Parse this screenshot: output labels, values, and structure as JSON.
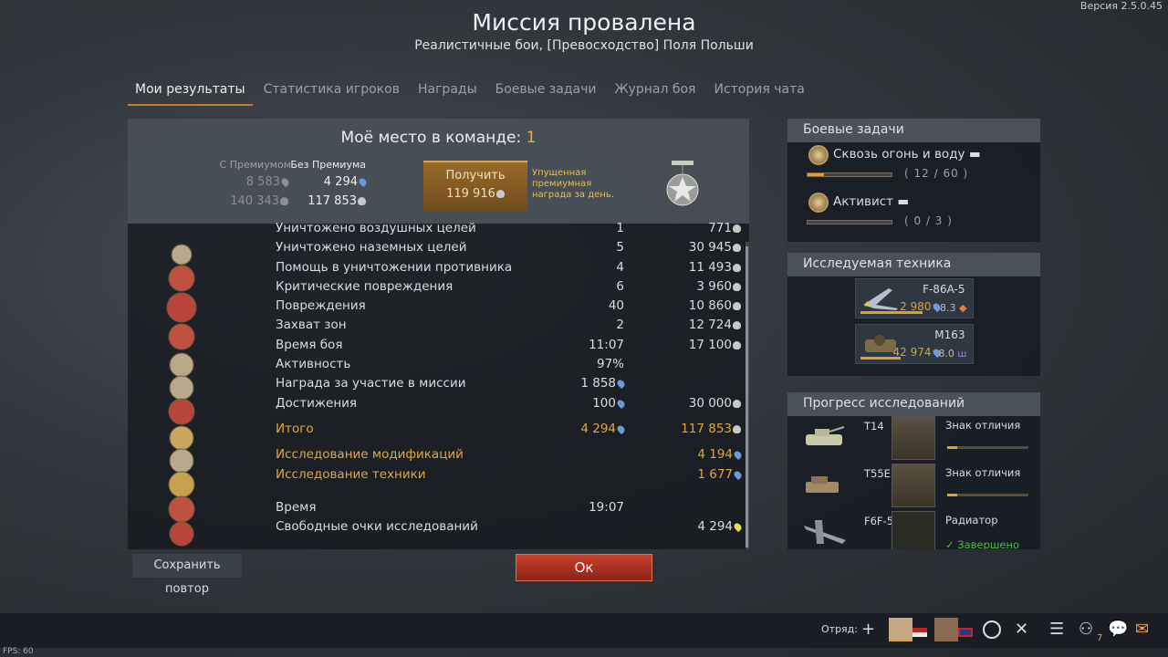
{
  "version": "Версия 2.5.0.45",
  "fps": "FPS: 60",
  "title": "Миссия провалена",
  "subtitle": "Реалистичные бои, [Превосходство] Поля Польши",
  "tabs": [
    {
      "label": "Мои результаты",
      "active": true
    },
    {
      "label": "Статистика игроков"
    },
    {
      "label": "Награды"
    },
    {
      "label": "Боевые задачи"
    },
    {
      "label": "Журнал боя"
    },
    {
      "label": "История чата"
    }
  ],
  "summary": {
    "place_label": "Моё место в команде:",
    "place": "1",
    "premium_header": "С Премиумом",
    "premium_rp": "8 583",
    "premium_sl": "140 343",
    "nopremium_header": "Без Премиума",
    "nopremium_rp": "4 294",
    "nopremium_sl": "117 853",
    "get_button": "Получить",
    "get_amount": "119 916",
    "missed_text": "Упущенная премиумная награда за день."
  },
  "rows": [
    {
      "label": "Уничтожено воздушных целей",
      "count": "1",
      "value": "771",
      "unit": "sl"
    },
    {
      "label": "Уничтожено наземных целей",
      "count": "5",
      "value": "30 945",
      "unit": "sl"
    },
    {
      "label": "Помощь в уничтожении противника",
      "count": "4",
      "value": "11 493",
      "unit": "sl"
    },
    {
      "label": "Критические повреждения",
      "count": "6",
      "value": "3 960",
      "unit": "sl"
    },
    {
      "label": "Повреждения",
      "count": "40",
      "value": "10 860",
      "unit": "sl"
    },
    {
      "label": "Захват зон",
      "count": "2",
      "value": "12 724",
      "unit": "sl"
    },
    {
      "label": "Время боя",
      "count": "11:07",
      "value": "17 100",
      "unit": "sl"
    },
    {
      "label": "Активность",
      "count": "97%",
      "value": ""
    },
    {
      "label": "Награда за участие в миссии",
      "count": "1 858",
      "count_unit": "rp",
      "value": ""
    },
    {
      "label": "Достижения",
      "count": "100",
      "count_unit": "rp",
      "value": "30 000",
      "unit": "sl"
    }
  ],
  "total": {
    "label": "Итого",
    "rp": "4 294",
    "sl": "117 853"
  },
  "research": [
    {
      "label": "Исследование модификаций",
      "value": "4 194"
    },
    {
      "label": "Исследование техники",
      "value": "1 677"
    }
  ],
  "time": {
    "label": "Время",
    "value": "19:07"
  },
  "free_rp": {
    "label": "Свободные очки исследований",
    "value": "4 294"
  },
  "tasks": {
    "title": "Боевые задачи",
    "items": [
      {
        "name": "Сквозь огонь и воду",
        "progress": "( 12 / 60 )",
        "fraction": 0.2
      },
      {
        "name": "Активист",
        "progress": "( 0 / 3 )",
        "fraction": 0
      }
    ]
  },
  "researched": {
    "title": "Исследуемая техника",
    "items": [
      {
        "name": "F-86A-5",
        "rp": "2 980",
        "br": "8.3",
        "fraction": 0.85
      },
      {
        "name": "M163",
        "rp": "42 974",
        "br": "8.0",
        "fraction": 0.55
      }
    ]
  },
  "progress": {
    "title": "Прогресс исследований",
    "items": [
      {
        "vehicle": "T14",
        "mod": "Знак отличия",
        "fraction": 0.12
      },
      {
        "vehicle": "T55E1",
        "mod": "Знак отличия",
        "fraction": 0.12
      },
      {
        "vehicle": "F6F-5",
        "mod": "Радиатор",
        "status": "Завершено"
      }
    ]
  },
  "buttons": {
    "save_replay": "Сохранить повтор",
    "ok": "Ок"
  },
  "bottom": {
    "squad_label": "Отряд:",
    "notifications": "7"
  },
  "colors": {
    "accent": "#e0a63e",
    "ok_button": "#b8382a",
    "rp": "#6a9ad8",
    "completed": "#40c040"
  }
}
